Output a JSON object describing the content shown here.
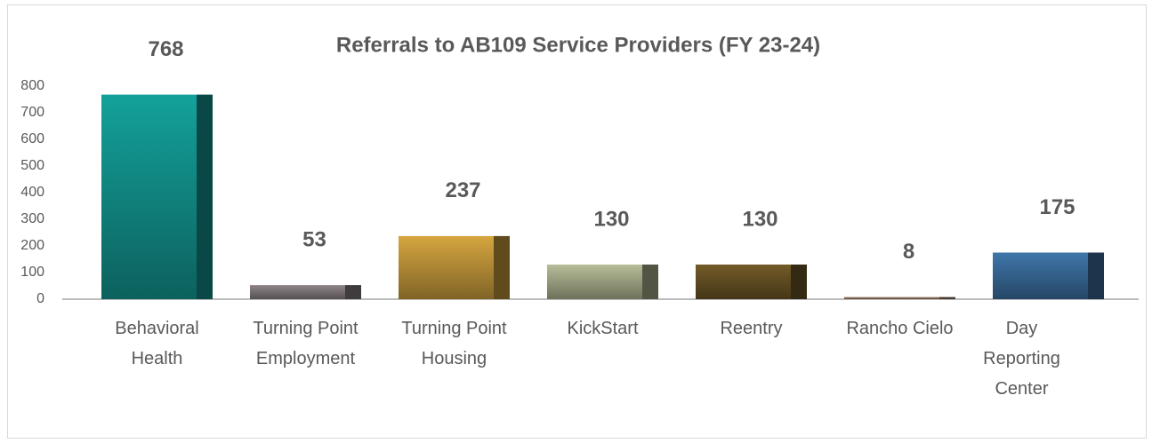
{
  "chart_data": {
    "type": "bar",
    "title": "Referrals to AB109 Service Providers (FY 23-24)",
    "categories": [
      "Behavioral Health",
      "Turning Point Employment",
      "Turning Point Housing",
      "KickStart",
      "Reentry",
      "Rancho Cielo",
      "Day Reporting Center"
    ],
    "values": [
      768,
      53,
      237,
      130,
      130,
      8,
      175
    ],
    "colors": [
      "#14a19b",
      "#8f8588",
      "#d6a640",
      "#b7bd98",
      "#735a28",
      "#9c8068",
      "#3f76aa"
    ],
    "ylim": [
      0,
      800
    ],
    "yticks": [
      0,
      100,
      200,
      300,
      400,
      500,
      600,
      700,
      800
    ],
    "grid": false
  }
}
